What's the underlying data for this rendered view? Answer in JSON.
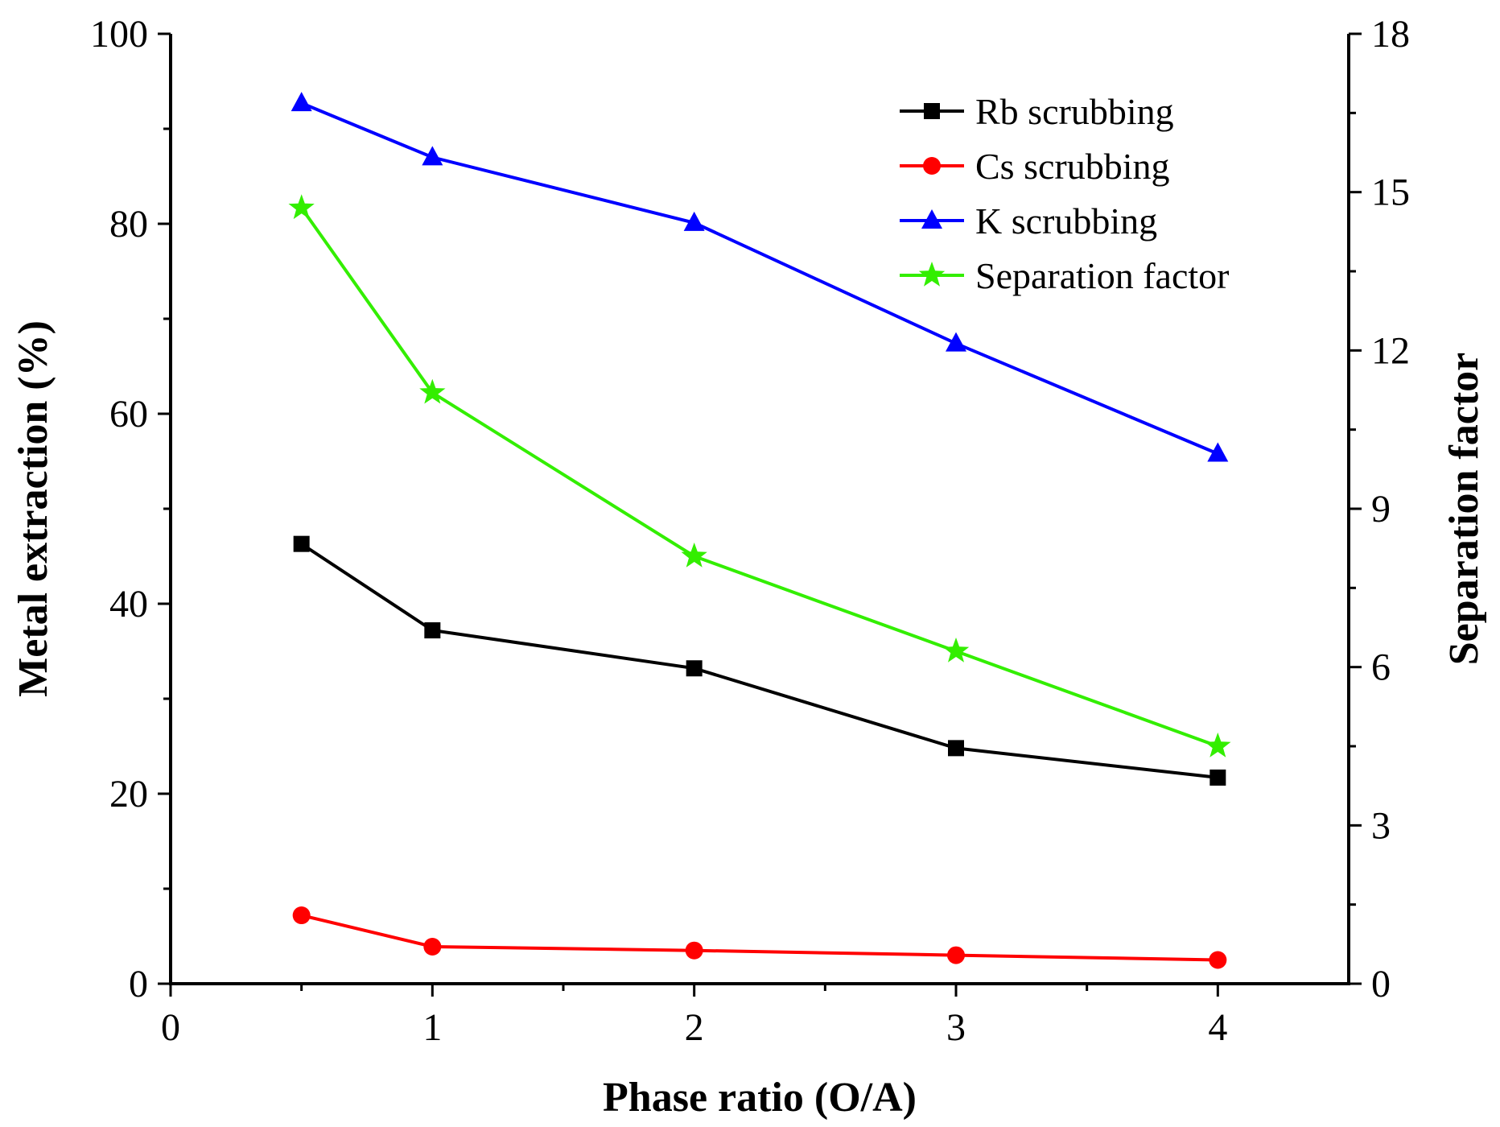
{
  "chart_data": {
    "type": "line",
    "x": [
      0.5,
      1,
      2,
      3,
      4
    ],
    "xlabel": "Phase ratio (O/A)",
    "ylabel": "Metal extraction (%)",
    "y2label": "Separation factor",
    "xlim": [
      0,
      4.5
    ],
    "ylim": [
      0,
      100
    ],
    "y2lim": [
      0,
      18
    ],
    "xticks": [
      "0",
      "1",
      "2",
      "3",
      "4"
    ],
    "yticks": [
      "0",
      "20",
      "40",
      "60",
      "80",
      "100"
    ],
    "y2ticks": [
      "0",
      "3",
      "6",
      "9",
      "12",
      "15",
      "18"
    ],
    "legend_position": "top-right",
    "grid": false,
    "series": [
      {
        "name": "Rb scrubbing",
        "axis": "left",
        "color": "#000000",
        "marker": "square",
        "values": [
          46.3,
          37.2,
          33.2,
          24.8,
          21.7
        ]
      },
      {
        "name": "Cs scrubbing",
        "axis": "left",
        "color": "#ff0000",
        "marker": "circle",
        "values": [
          7.2,
          3.9,
          3.5,
          3.0,
          2.5
        ]
      },
      {
        "name": "K scrubbing",
        "axis": "left",
        "color": "#0000ff",
        "marker": "triangle",
        "values": [
          92.7,
          87.0,
          80.1,
          67.4,
          55.8
        ]
      },
      {
        "name": "Separation factor",
        "axis": "right",
        "color": "#33ee00",
        "marker": "star",
        "values": [
          14.7,
          11.2,
          8.1,
          6.3,
          4.5
        ]
      }
    ]
  }
}
